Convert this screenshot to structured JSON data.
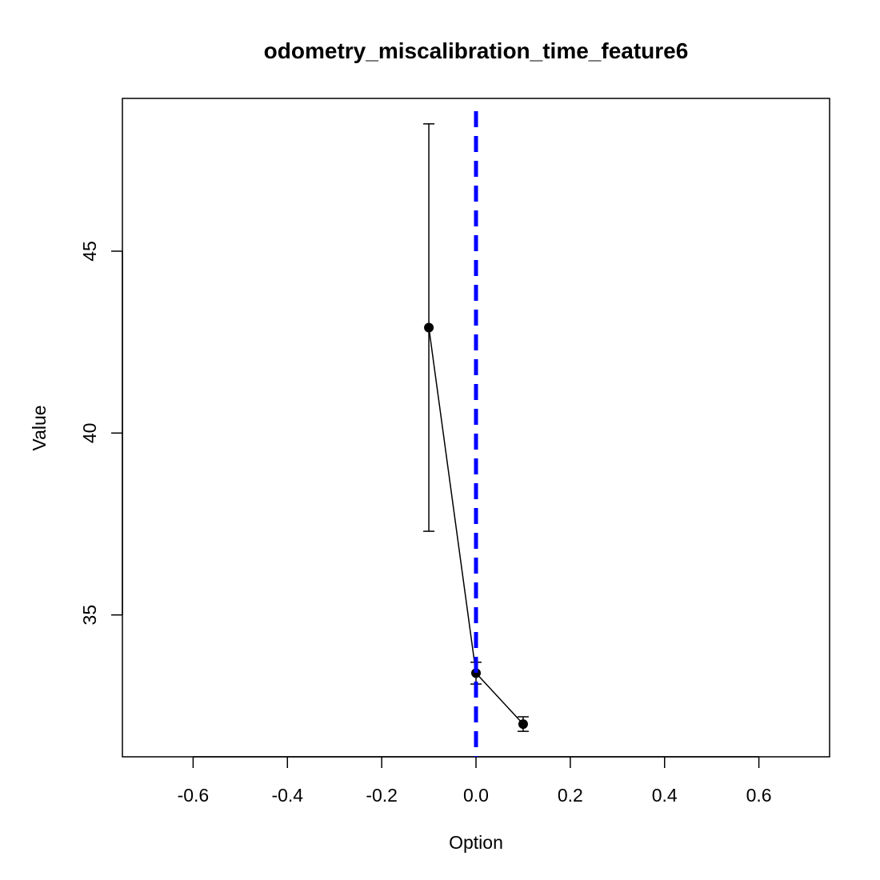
{
  "chart_data": {
    "type": "line",
    "title": "odometry_miscalibration_time_feature6",
    "xlabel": "Option",
    "ylabel": "Value",
    "xlim": [
      -0.75,
      0.75
    ],
    "ylim": [
      31.1,
      49.2
    ],
    "x_ticks": [
      -0.6,
      -0.4,
      -0.2,
      0.0,
      0.2,
      0.4,
      0.6
    ],
    "x_tick_labels": [
      "-0.6",
      "-0.4",
      "-0.2",
      "0.0",
      "0.2",
      "0.4",
      "0.6"
    ],
    "y_ticks": [
      35,
      40,
      45
    ],
    "y_tick_labels": [
      "35",
      "40",
      "45"
    ],
    "grid": false,
    "series": [
      {
        "x": [
          -0.1,
          0.0,
          0.1
        ],
        "y": [
          42.9,
          33.4,
          32.0
        ],
        "err_low": [
          37.3,
          33.1,
          31.8
        ],
        "err_high": [
          48.5,
          33.7,
          32.2
        ],
        "color": "#000000"
      }
    ],
    "reference_line": {
      "x": 0.0,
      "orientation": "vertical",
      "style": "dashed",
      "color": "#0000ff"
    }
  }
}
